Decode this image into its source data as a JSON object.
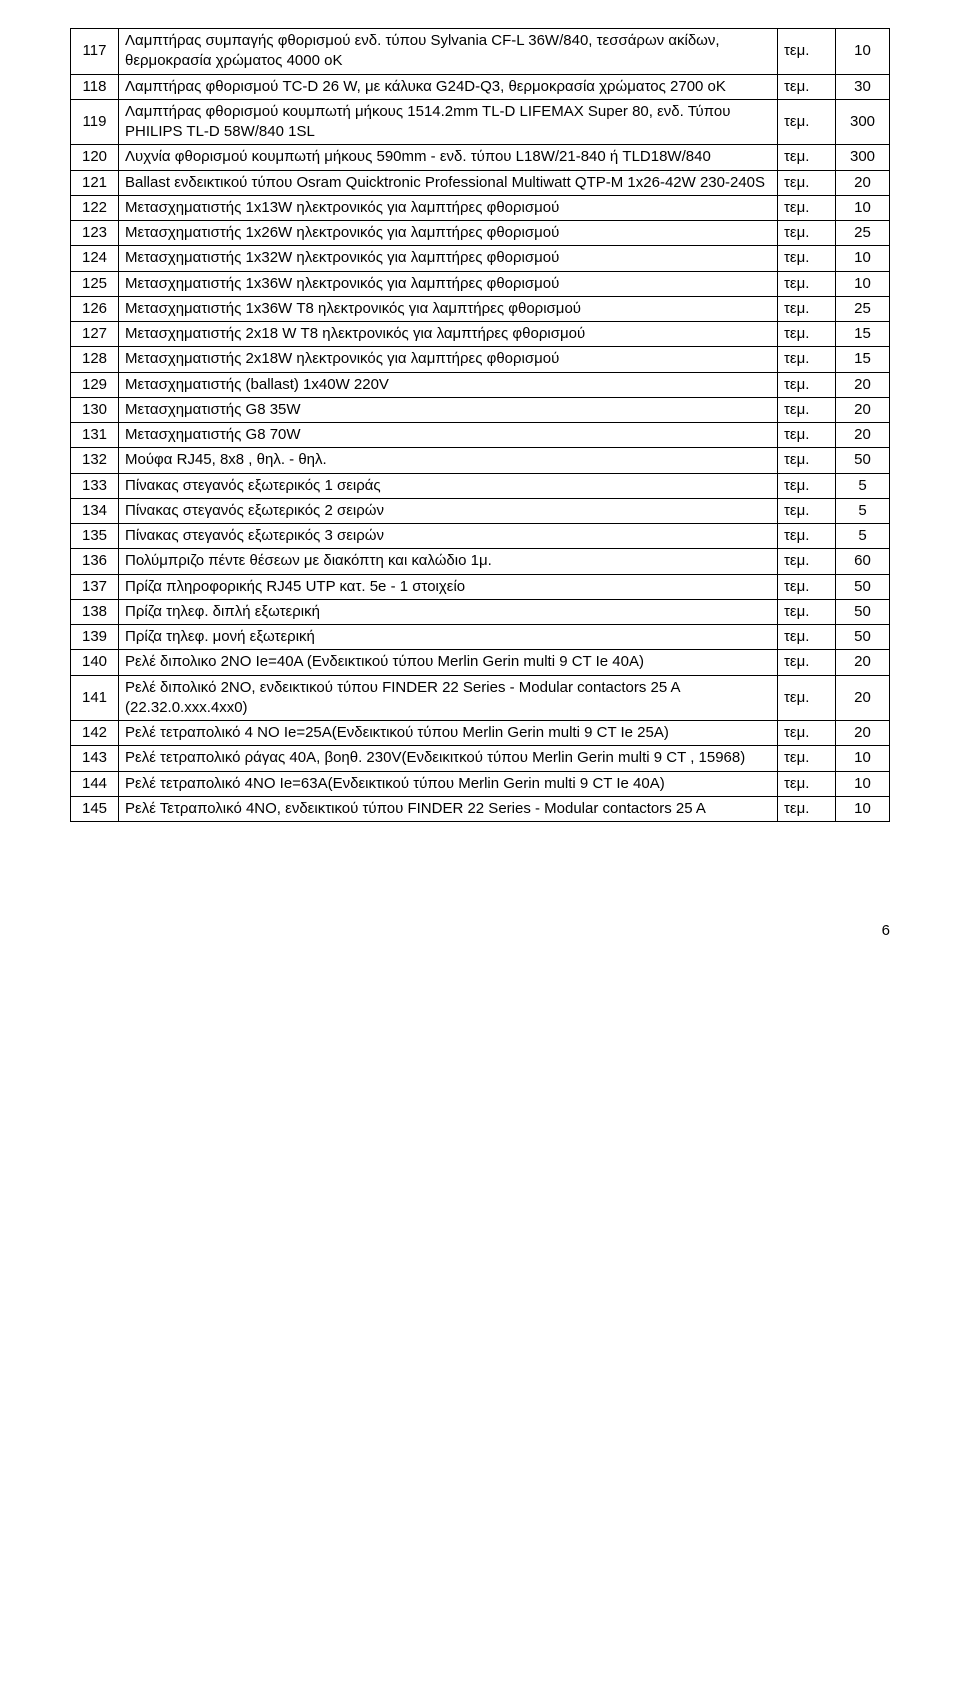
{
  "page_number": "6",
  "rows": [
    {
      "num": "117",
      "desc": "Λαμπτήρας συμπαγής φθορισμού ενδ. τύπου Sylvania CF-L 36W/840, τεσσάρων ακίδων, θερμοκρασία χρώματος 4000 οΚ",
      "unit": "τεμ.",
      "qty": "10"
    },
    {
      "num": "118",
      "desc": "Λαμπτήρας φθορισμού TC-D 26 W, με κάλυκα G24D-Q3, θερμοκρασία χρώματος 2700 οΚ",
      "unit": "τεμ.",
      "qty": "30"
    },
    {
      "num": "119",
      "desc": "Λαμπτήρας φθορισμού  κουμπωτή μήκους 1514.2mm  TL-D LIFEMAX Super 80, ενδ. Τύπου PHILIPS TL-D 58W/840 1SL",
      "unit": "τεμ.",
      "qty": "300"
    },
    {
      "num": "120",
      "desc": "Λυχνία φθορισμού κουμπωτή μήκους  590mm  - ενδ. τύπου L18W/21-840 ή TLD18W/840",
      "unit": "τεμ.",
      "qty": "300"
    },
    {
      "num": "121",
      "desc": "Ballast ενδεικτικού τύπου Osram Quicktronic Professional Multiwatt QTP-M 1x26-42W 230-240S",
      "unit": "τεμ.",
      "qty": "20"
    },
    {
      "num": "122",
      "desc": "Μετασχηματιστής 1x13W ηλεκτρονικός για λαμπτήρες φθορισμού",
      "unit": "τεμ.",
      "qty": "10"
    },
    {
      "num": "123",
      "desc": "Μετασχηματιστής 1x26W ηλεκτρονικός για λαμπτήρες φθορισμού",
      "unit": "τεμ.",
      "qty": "25"
    },
    {
      "num": "124",
      "desc": "Μετασχηματιστής 1x32W ηλεκτρονικός για λαμπτήρες φθορισμού",
      "unit": "τεμ.",
      "qty": "10"
    },
    {
      "num": "125",
      "desc": "Μετασχηματιστής 1x36W ηλεκτρονικός για λαμπτήρες φθορισμού",
      "unit": "τεμ.",
      "qty": "10"
    },
    {
      "num": "126",
      "desc": "Μετασχηματιστής 1x36W Τ8 ηλεκτρονικός για λαμπτήρες φθορισμού",
      "unit": "τεμ.",
      "qty": "25"
    },
    {
      "num": "127",
      "desc": "Μετασχηματιστής 2x18 W Τ8 ηλεκτρονικός για λαμπτήρες φθορισμού",
      "unit": "τεμ.",
      "qty": "15"
    },
    {
      "num": "128",
      "desc": "Μετασχηματιστής 2x18W ηλεκτρονικός για λαμπτήρες φθορισμού",
      "unit": "τεμ.",
      "qty": "15"
    },
    {
      "num": "129",
      "desc": "Μετασχηματιστής (ballast) 1x40W 220V",
      "unit": "τεμ.",
      "qty": "20"
    },
    {
      "num": "130",
      "desc": "Μετασχηματιστής G8 35W",
      "unit": "τεμ.",
      "qty": "20"
    },
    {
      "num": "131",
      "desc": "Μετασχηματιστής G8 70W",
      "unit": "τεμ.",
      "qty": "20"
    },
    {
      "num": "132",
      "desc": "Μούφα RJ45, 8x8 , θηλ. - θηλ.",
      "unit": "τεμ.",
      "qty": "50"
    },
    {
      "num": "133",
      "desc": "Πίνακας στεγανός εξωτερικός 1 σειράς",
      "unit": "τεμ.",
      "qty": "5"
    },
    {
      "num": "134",
      "desc": "Πίνακας στεγανός εξωτερικός 2 σειρών",
      "unit": "τεμ.",
      "qty": "5"
    },
    {
      "num": "135",
      "desc": "Πίνακας στεγανός εξωτερικός 3 σειρών",
      "unit": "τεμ.",
      "qty": "5"
    },
    {
      "num": "136",
      "desc": "Πολύμπριζο πέντε θέσεων με διακόπτη  και καλώδιο 1μ.",
      "unit": "τεμ.",
      "qty": "60"
    },
    {
      "num": "137",
      "desc": "Πρίζα πληροφορικής RJ45 UTP κατ. 5e - 1 στοιχείο",
      "unit": "τεμ.",
      "qty": "50"
    },
    {
      "num": "138",
      "desc": "Πρίζα τηλεφ. διπλή εξωτερική",
      "unit": "τεμ.",
      "qty": "50"
    },
    {
      "num": "139",
      "desc": "Πρίζα τηλεφ. μονή εξωτερική",
      "unit": "τεμ.",
      "qty": "50"
    },
    {
      "num": "140",
      "desc": "Ρελέ διπολικο  2NO Ie=40A (Ενδεικτικού τύπου Merlin Gerin multi 9 CT Ie 40A)",
      "unit": "τεμ.",
      "qty": "20"
    },
    {
      "num": "141",
      "desc": "Ρελέ διπολικό 2NO, ενδεικτικού τύπου FINDER 22 Series - Modular contactors 25 A (22.32.0.xxx.4xx0)",
      "unit": "τεμ.",
      "qty": "20"
    },
    {
      "num": "142",
      "desc": "Ρελέ τετραπολικό  4 NO Ie=25A(Ενδεικτικού τύπου Merlin Gerin multi 9 CT Ie 25A)",
      "unit": "τεμ.",
      "qty": "20"
    },
    {
      "num": "143",
      "desc": "Ρελέ τετραπολικό  ράγας 40Α, βοηθ. 230V(Ενδεικιτκού τύπου Merlin Gerin multi 9 CT , 15968)",
      "unit": "τεμ.",
      "qty": "10"
    },
    {
      "num": "144",
      "desc": "Ρελέ τετραπολικό 4NO Ie=63A(Ενδεικτικού τύπου Merlin Gerin multi 9 CT Ie 40A)",
      "unit": "τεμ.",
      "qty": "10"
    },
    {
      "num": "145",
      "desc": "Ρελέ Τετραπολικό 4ΝΟ, ενδεικτικού τύπου FINDER 22 Series - Modular contactors 25 A",
      "unit": "τεμ.",
      "qty": "10"
    }
  ]
}
